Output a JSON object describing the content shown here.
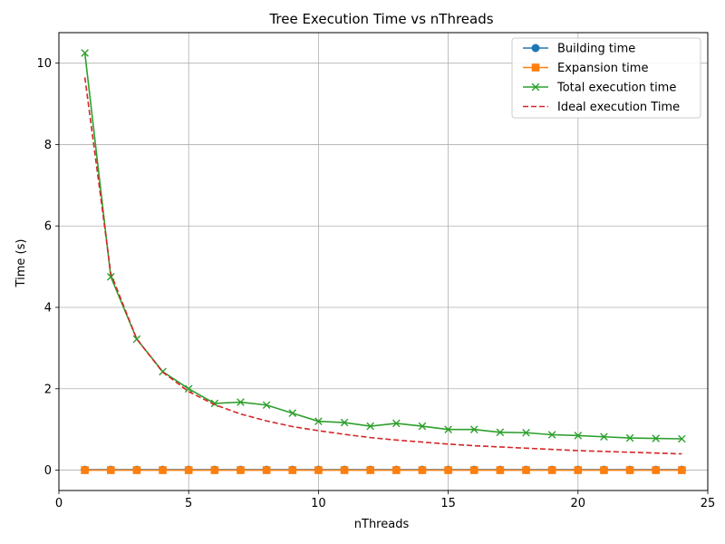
{
  "chart_data": {
    "type": "line",
    "title": "Tree Execution Time vs nThreads",
    "xlabel": "nThreads",
    "ylabel": "Time (s)",
    "xlim": [
      0,
      25
    ],
    "ylim": [
      -0.5,
      10.75
    ],
    "xticks": [
      0,
      5,
      10,
      15,
      20,
      25
    ],
    "yticks": [
      0,
      2,
      4,
      6,
      8,
      10
    ],
    "grid": true,
    "legend_position": "top-right",
    "x": [
      1,
      2,
      3,
      4,
      5,
      6,
      7,
      8,
      9,
      10,
      11,
      12,
      13,
      14,
      15,
      16,
      17,
      18,
      19,
      20,
      21,
      22,
      23,
      24
    ],
    "series": [
      {
        "name": "Building time",
        "color": "#1f77b4",
        "marker": "circle",
        "linestyle": "solid",
        "values": [
          0.01,
          0.01,
          0.01,
          0.01,
          0.01,
          0.01,
          0.01,
          0.01,
          0.01,
          0.01,
          0.01,
          0.01,
          0.01,
          0.01,
          0.01,
          0.01,
          0.01,
          0.01,
          0.01,
          0.01,
          0.01,
          0.01,
          0.01,
          0.01
        ]
      },
      {
        "name": "Expansion time",
        "color": "#ff7f0e",
        "marker": "square",
        "linestyle": "solid",
        "values": [
          0.0,
          0.0,
          0.0,
          0.0,
          0.0,
          0.0,
          0.0,
          0.0,
          0.0,
          0.0,
          0.0,
          0.0,
          0.0,
          0.0,
          0.0,
          0.0,
          0.0,
          0.0,
          0.0,
          0.0,
          0.0,
          0.0,
          0.0,
          0.0
        ]
      },
      {
        "name": "Total execution time",
        "color": "#2ca02c",
        "marker": "x",
        "linestyle": "solid",
        "values": [
          10.25,
          4.75,
          3.22,
          2.42,
          2.0,
          1.64,
          1.67,
          1.6,
          1.4,
          1.2,
          1.17,
          1.08,
          1.15,
          1.08,
          1.0,
          1.0,
          0.93,
          0.92,
          0.87,
          0.85,
          0.82,
          0.79,
          0.78,
          0.77
        ]
      },
      {
        "name": "Ideal execution Time",
        "color": "#d62728",
        "marker": "none",
        "linestyle": "dashed",
        "values": [
          9.65,
          4.83,
          3.22,
          2.41,
          1.93,
          1.61,
          1.38,
          1.21,
          1.07,
          0.97,
          0.88,
          0.8,
          0.74,
          0.69,
          0.64,
          0.6,
          0.57,
          0.54,
          0.51,
          0.48,
          0.46,
          0.44,
          0.42,
          0.4
        ]
      }
    ]
  }
}
